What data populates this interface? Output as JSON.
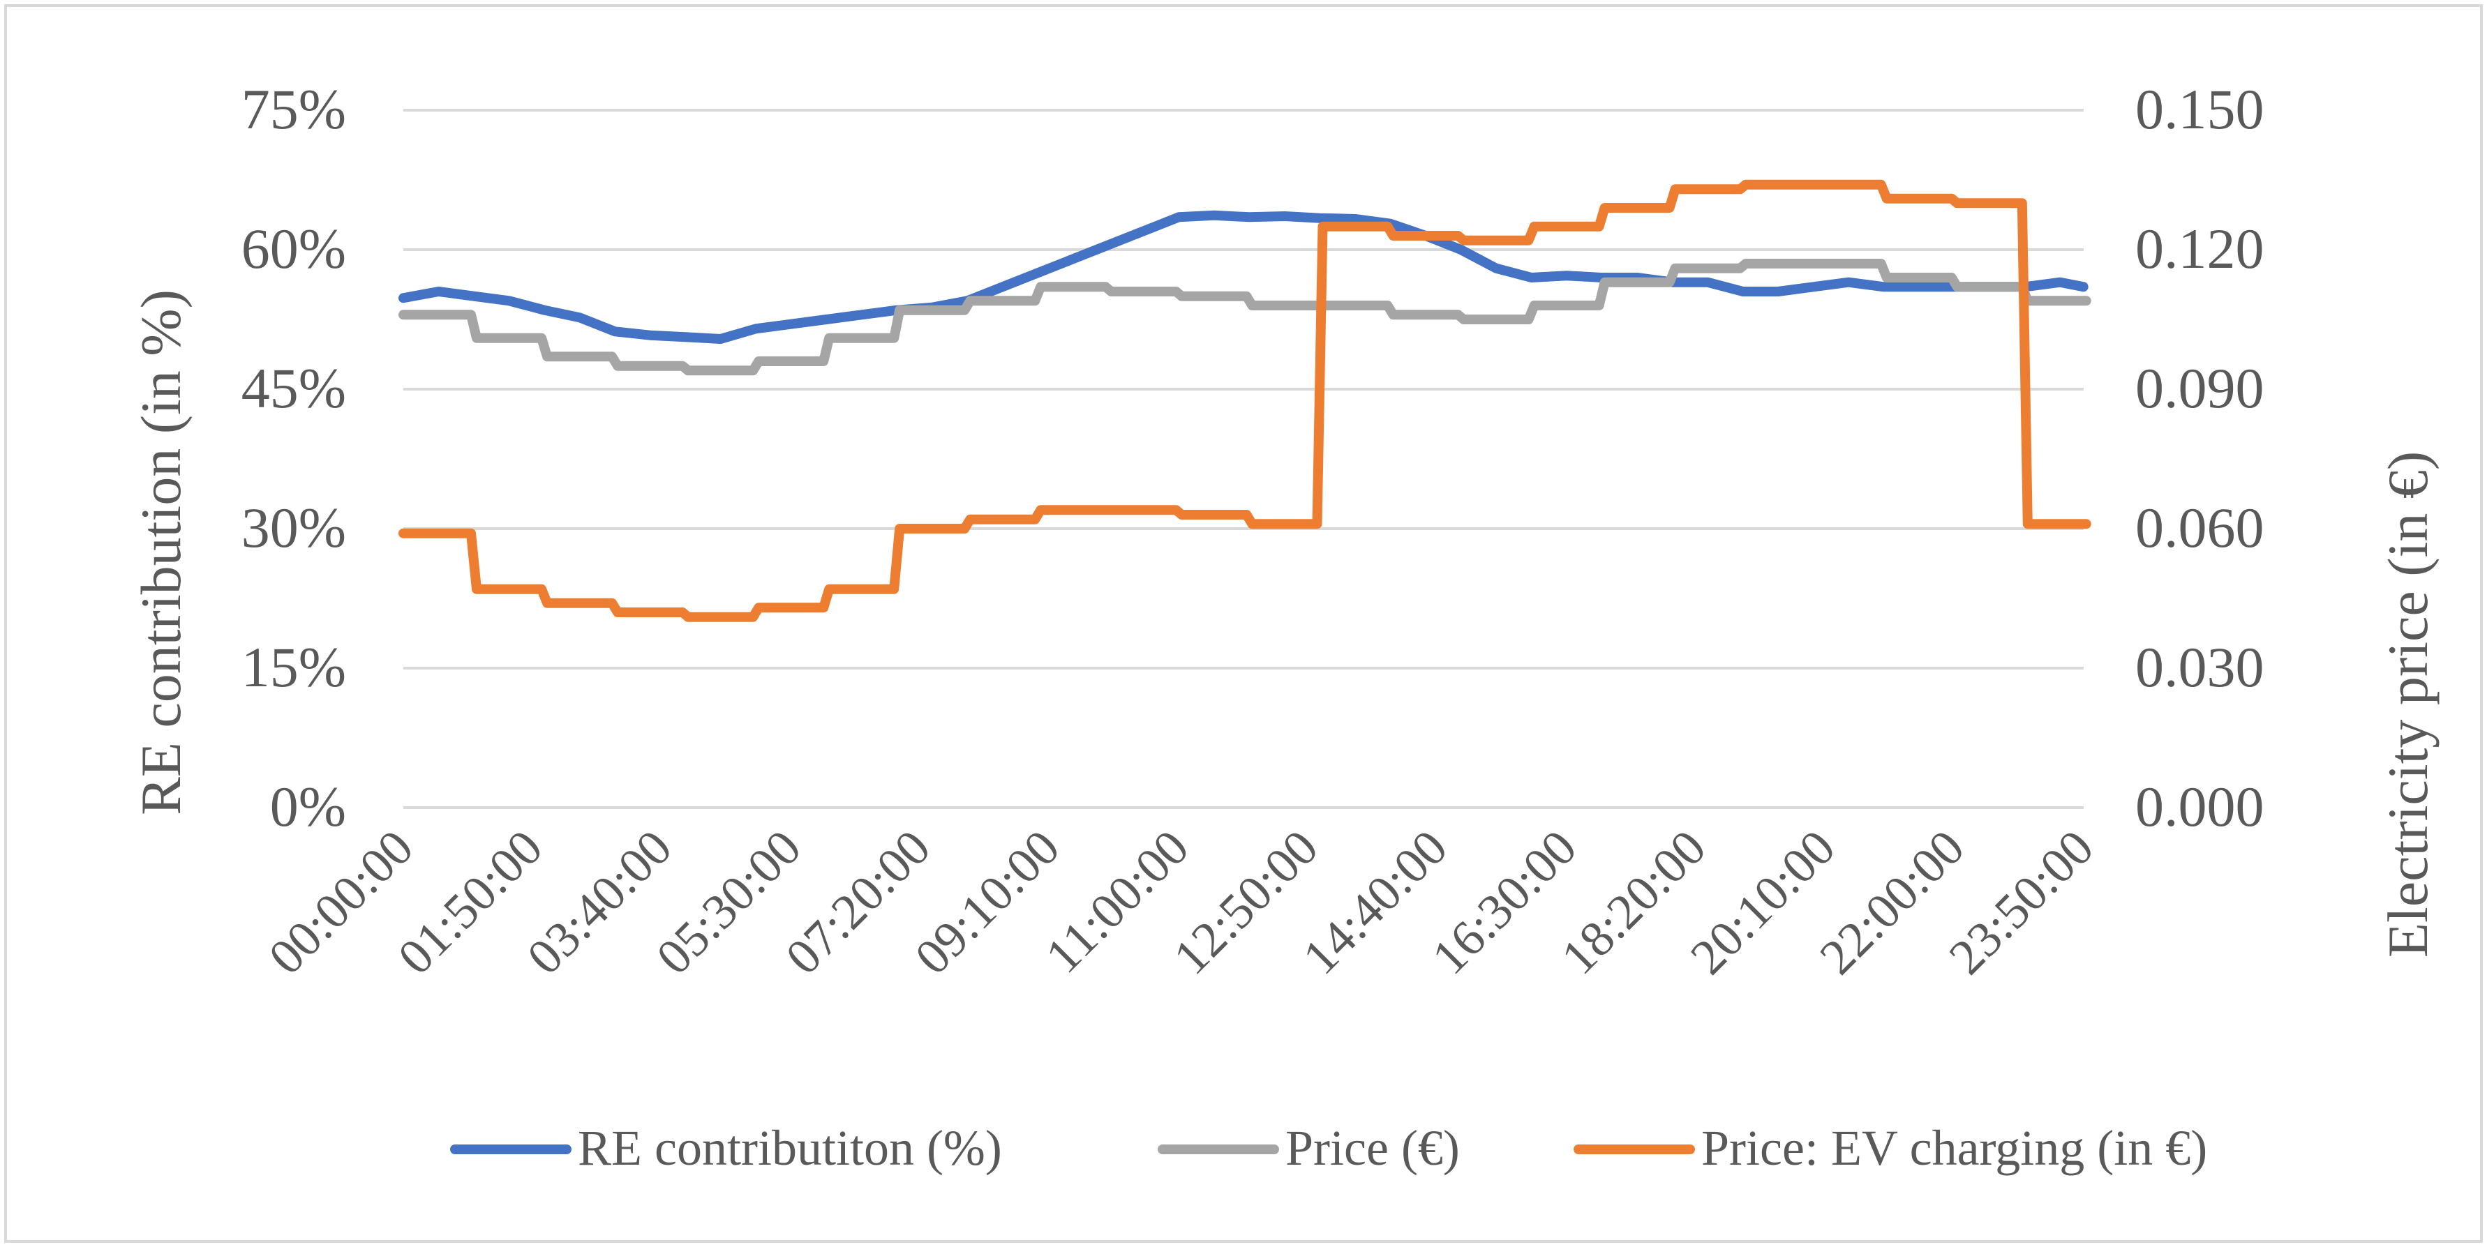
{
  "chart_data": {
    "type": "line",
    "title": "",
    "xlabel": "",
    "ylabel": "RE contribution (in %)",
    "y2label": "Electricity price (in €)",
    "ylim": [
      0,
      75
    ],
    "y2lim": [
      0,
      0.15
    ],
    "yticks": [
      "0%",
      "15%",
      "30%",
      "45%",
      "60%",
      "75%"
    ],
    "y2ticks": [
      "0.000",
      "0.030",
      "0.060",
      "0.090",
      "0.120",
      "0.150"
    ],
    "xticks": [
      "00:00:00",
      "01:50:00",
      "03:40:00",
      "05:30:00",
      "07:20:00",
      "09:10:00",
      "11:00:00",
      "12:50:00",
      "14:40:00",
      "16:30:00",
      "18:20:00",
      "20:10:00",
      "22:00:00",
      "23:50:00"
    ],
    "grid": true,
    "legend_position": "bottom",
    "x_hours": [
      0,
      0.5,
      1,
      1.5,
      2,
      2.5,
      3,
      3.5,
      4,
      4.5,
      5,
      5.5,
      6,
      6.5,
      7,
      7.5,
      8,
      8.5,
      9,
      9.5,
      10,
      10.5,
      11,
      11.5,
      12,
      12.5,
      13,
      13.5,
      14,
      14.5,
      15,
      15.5,
      16,
      16.5,
      17,
      17.5,
      18,
      18.5,
      19,
      19.5,
      20,
      20.5,
      21,
      21.5,
      22,
      22.5,
      23,
      23.5,
      23.83
    ],
    "series": [
      {
        "name": "RE contributiton (%)",
        "axis": "left",
        "color": "#4472c4",
        "values": [
          54.8,
          55.5,
          55.0,
          54.5,
          53.5,
          52.7,
          51.2,
          50.8,
          50.6,
          50.4,
          51.5,
          52.0,
          52.5,
          53.0,
          53.5,
          53.8,
          54.5,
          56.0,
          57.5,
          59.0,
          60.5,
          62.0,
          63.5,
          63.7,
          63.5,
          63.6,
          63.4,
          63.3,
          62.8,
          61.5,
          60.0,
          58.0,
          57.0,
          57.2,
          57.0,
          57.0,
          56.5,
          56.5,
          55.5,
          55.5,
          56.0,
          56.5,
          56.0,
          56.0,
          56.0,
          56.0,
          56.0,
          56.5,
          56.0
        ]
      },
      {
        "name": "Price (€)",
        "axis": "right",
        "color": "#a5a5a5",
        "values": [
          0.106,
          0.106,
          0.101,
          0.101,
          0.097,
          0.097,
          0.095,
          0.095,
          0.094,
          0.094,
          0.096,
          0.096,
          0.101,
          0.101,
          0.107,
          0.107,
          0.109,
          0.109,
          0.112,
          0.112,
          0.111,
          0.111,
          0.11,
          0.11,
          0.108,
          0.108,
          0.108,
          0.108,
          0.106,
          0.106,
          0.105,
          0.105,
          0.108,
          0.108,
          0.113,
          0.113,
          0.116,
          0.116,
          0.117,
          0.117,
          0.117,
          0.117,
          0.114,
          0.114,
          0.112,
          0.112,
          0.109,
          0.109,
          0.109
        ]
      },
      {
        "name": "Price: EV charging (in €)",
        "axis": "right",
        "color": "#ed7d31",
        "values": [
          0.059,
          0.059,
          0.047,
          0.047,
          0.044,
          0.044,
          0.042,
          0.042,
          0.041,
          0.041,
          0.043,
          0.043,
          0.047,
          0.047,
          0.06,
          0.06,
          0.062,
          0.062,
          0.064,
          0.064,
          0.064,
          0.064,
          0.063,
          0.063,
          0.061,
          0.061,
          0.125,
          0.125,
          0.123,
          0.123,
          0.122,
          0.122,
          0.125,
          0.125,
          0.129,
          0.129,
          0.133,
          0.133,
          0.134,
          0.134,
          0.134,
          0.134,
          0.131,
          0.131,
          0.13,
          0.13,
          0.061,
          0.061,
          0.061
        ]
      }
    ]
  }
}
